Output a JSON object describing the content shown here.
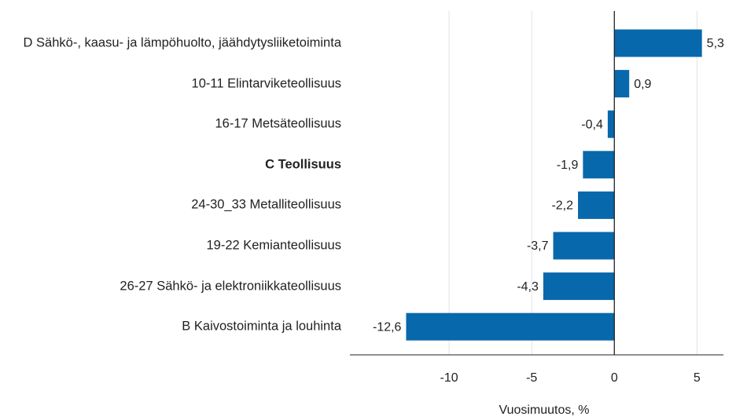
{
  "chart_data": {
    "type": "hbar",
    "categories": [
      "D Sähkö-, kaasu- ja lämpöhuolto, jäähdytysliiketoiminta",
      "10-11 Elintarviketeollisuus",
      "16-17 Metsäteollisuus",
      "C Teollisuus",
      "24-30_33 Metalliteollisuus",
      "19-22 Kemianteollisuus",
      "26-27 Sähkö- ja elektroniikkateollisuus",
      "B Kaivostoiminta ja louhinta"
    ],
    "bold_categories": [
      3
    ],
    "values": [
      5.3,
      0.9,
      -0.4,
      -1.9,
      -2.2,
      -3.7,
      -4.3,
      -12.6
    ],
    "value_labels": [
      "5,3",
      "0,9",
      "-0,4",
      "-1,9",
      "-2,2",
      "-3,7",
      "-4,3",
      "-12,6"
    ],
    "color": "#0868ac",
    "xlabel": "Vuosimuutos, %",
    "xlim": [
      -16,
      6.6
    ],
    "xticks": [
      -10,
      -5,
      0,
      5
    ],
    "grid": true
  }
}
